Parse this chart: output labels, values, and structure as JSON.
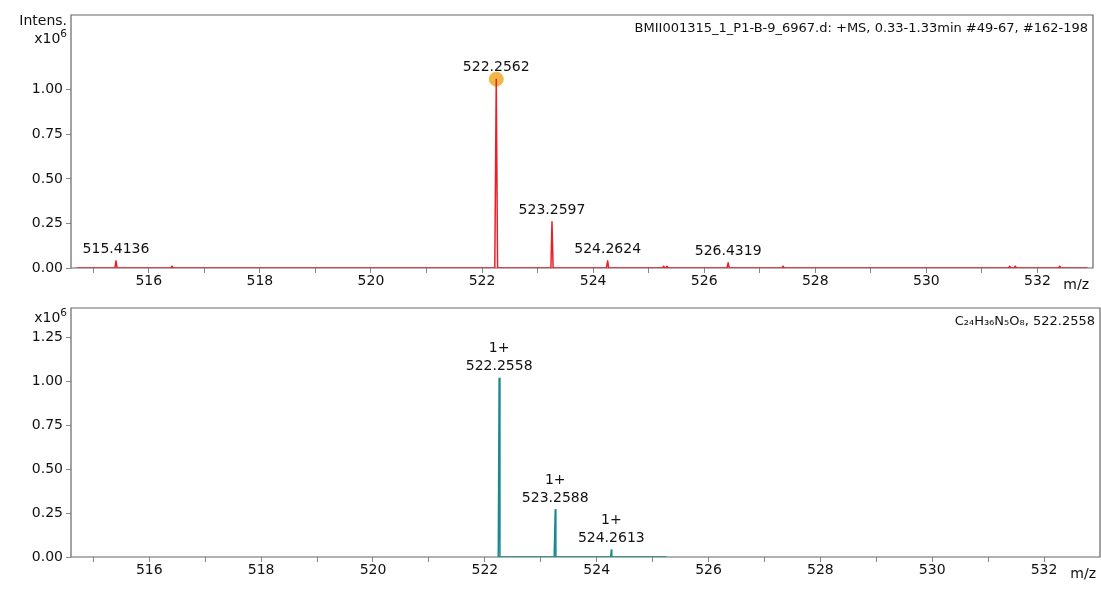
{
  "chart_data": [
    {
      "type": "line",
      "ylabel": "Intens.\nx10$^{6}$",
      "xlabel": "m/z",
      "xlim": [
        514.6,
        533.0
      ],
      "ylim": [
        0,
        1.42
      ],
      "xticks": [
        {
          "value": 515,
          "label": null
        },
        516,
        {
          "value": 517,
          "label": null
        },
        518,
        {
          "value": 519,
          "label": null
        },
        520,
        {
          "value": 521,
          "label": null
        },
        522,
        {
          "value": 523,
          "label": null
        },
        524,
        {
          "value": 525,
          "label": null
        },
        526,
        {
          "value": 527,
          "label": null
        },
        528,
        {
          "value": 529,
          "label": null
        },
        530,
        {
          "value": 531,
          "label": null
        },
        532
      ],
      "yticks": [
        {
          "value": 0,
          "label": "0.00"
        },
        {
          "value": 0.25,
          "label": "0.25"
        },
        {
          "value": 0.5,
          "label": "0.50"
        },
        {
          "value": 0.75,
          "label": "0.75"
        },
        {
          "value": 1,
          "label": "1.00"
        }
      ],
      "grid": false,
      "legend": false,
      "marker": "none",
      "series": [
        {
          "type": "line",
          "color": "#e8202a",
          "x": [
            514.7,
            515.39,
            515.41,
            515.43,
            516.4,
            516.42,
            516.44,
            522.23,
            522.2562,
            522.28,
            523.24,
            523.2597,
            523.28,
            524.24,
            524.2624,
            524.28,
            525.25,
            525.27,
            525.29,
            525.31,
            525.33,
            525.35,
            526.41,
            526.4319,
            526.45,
            527.4,
            527.42,
            527.44,
            531.48,
            531.5,
            531.52,
            531.58,
            531.6,
            531.62,
            532.38,
            532.4,
            532.42,
            532.9
          ],
          "values": [
            0,
            0,
            0.04,
            0,
            0,
            0.01,
            0,
            0,
            1.06,
            0,
            0,
            0.26,
            0,
            0,
            0.04,
            0,
            0,
            0.01,
            0,
            0,
            0.01,
            0,
            0,
            0.03,
            0,
            0,
            0.01,
            0,
            0,
            0.01,
            0,
            0,
            0.01,
            0,
            0,
            0.01,
            0,
            0
          ]
        },
        {
          "type": "scatter",
          "marker": "circle",
          "color": "#f2b648",
          "x": [
            522.2562
          ],
          "values": [
            1.06
          ]
        }
      ],
      "annotations": [
        "BMII001315_1_P1-B-9_6967.d: +MS, 0.33-1.33min #49-67, #162-198",
        {
          "text": "515.4136",
          "x": 515.41,
          "y": 0.04
        },
        {
          "text": "522.2562",
          "x": 522.2562,
          "y": 1.06
        },
        {
          "text": "523.2597",
          "x": 523.2597,
          "y": 0.26
        },
        {
          "text": "524.2624",
          "x": 524.2624,
          "y": 0.04
        },
        {
          "text": "526.4319",
          "x": 526.4319,
          "y": 0.03
        }
      ]
    },
    {
      "type": "line",
      "ylabel": "x10$^{6}$",
      "xlabel": "m/z",
      "xlim": [
        514.6,
        533.0
      ],
      "ylim": [
        0,
        1.42
      ],
      "xticks": [
        {
          "value": 515,
          "label": null
        },
        516,
        {
          "value": 517,
          "label": null
        },
        518,
        {
          "value": 519,
          "label": null
        },
        520,
        {
          "value": 521,
          "label": null
        },
        522,
        {
          "value": 523,
          "label": null
        },
        524,
        {
          "value": 525,
          "label": null
        },
        526,
        {
          "value": 527,
          "label": null
        },
        528,
        {
          "value": 529,
          "label": null
        },
        530,
        {
          "value": 531,
          "label": null
        },
        532
      ],
      "yticks": [
        {
          "value": 0,
          "label": "0.00"
        },
        {
          "value": 0.25,
          "label": "0.25"
        },
        {
          "value": 0.5,
          "label": "0.50"
        },
        {
          "value": 0.75,
          "label": "0.75"
        },
        {
          "value": 1,
          "label": "1.00"
        },
        {
          "value": 1.25,
          "label": "1.25"
        }
      ],
      "grid": false,
      "legend": false,
      "marker": "none",
      "series": [
        {
          "type": "line",
          "color": "#1a8a8a",
          "x": [
            522.24,
            522.2558,
            522.27,
            523.24,
            523.2588,
            523.27,
            524.25,
            524.2613,
            524.27,
            525.25
          ],
          "values": [
            0,
            1.02,
            0,
            0,
            0.27,
            0,
            0,
            0.04,
            0,
            0
          ]
        }
      ],
      "annotations": [
        "C₂₄H₃₆N₅O₈, 522.2558",
        {
          "text": "1+\n522.2558",
          "x": 522.2558,
          "y": 1.02
        },
        {
          "text": "1+\n523.2588",
          "x": 523.2588,
          "y": 0.27
        },
        {
          "text": "1+\n524.2613",
          "x": 524.2613,
          "y": 0.04
        }
      ]
    }
  ]
}
